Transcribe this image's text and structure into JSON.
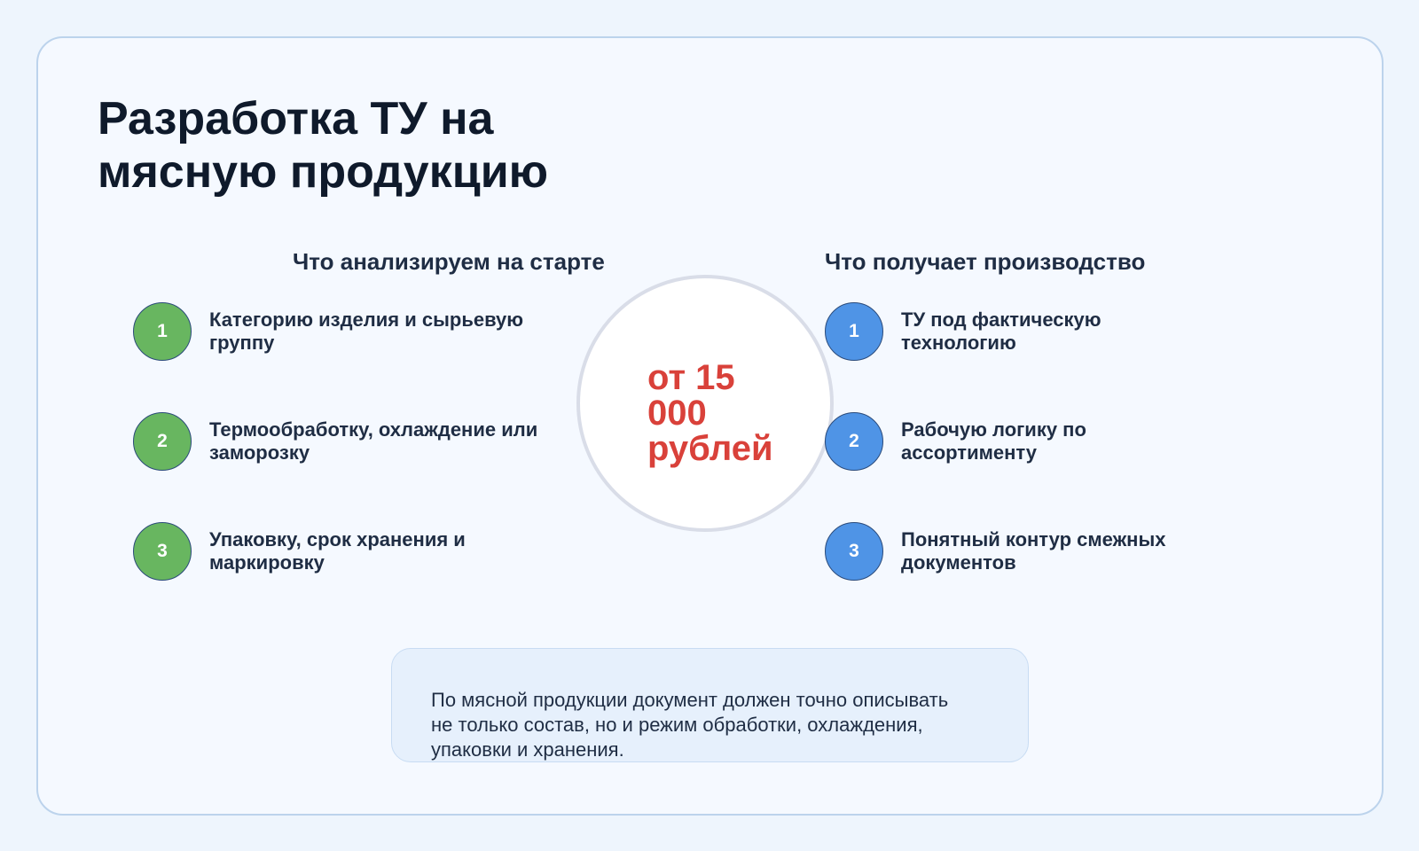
{
  "title": "Разработка ТУ на мясную продукцию",
  "left": {
    "heading": "Что анализируем на старте",
    "items": [
      {
        "num": "1",
        "text": "Категорию изделия и сырьевую группу"
      },
      {
        "num": "2",
        "text": "Термообработку, охлаждение или заморозку"
      },
      {
        "num": "3",
        "text": "Упаковку, срок хранения и маркировку"
      }
    ]
  },
  "right": {
    "heading": "Что получает производство",
    "items": [
      {
        "num": "1",
        "text": "ТУ под фактическую технологию"
      },
      {
        "num": "2",
        "text": "Рабочую логику по ассортименту"
      },
      {
        "num": "3",
        "text": "Понятный контур смежных документов"
      }
    ]
  },
  "price": "от 15 000 рублей",
  "note": "По мясной продукции документ должен точно описывать не только состав, но и режим обработки, охлаждения, упаковки и хранения.",
  "colors": {
    "left_accent": "#68b660",
    "right_accent": "#4f94e6",
    "price": "#d9413a"
  }
}
